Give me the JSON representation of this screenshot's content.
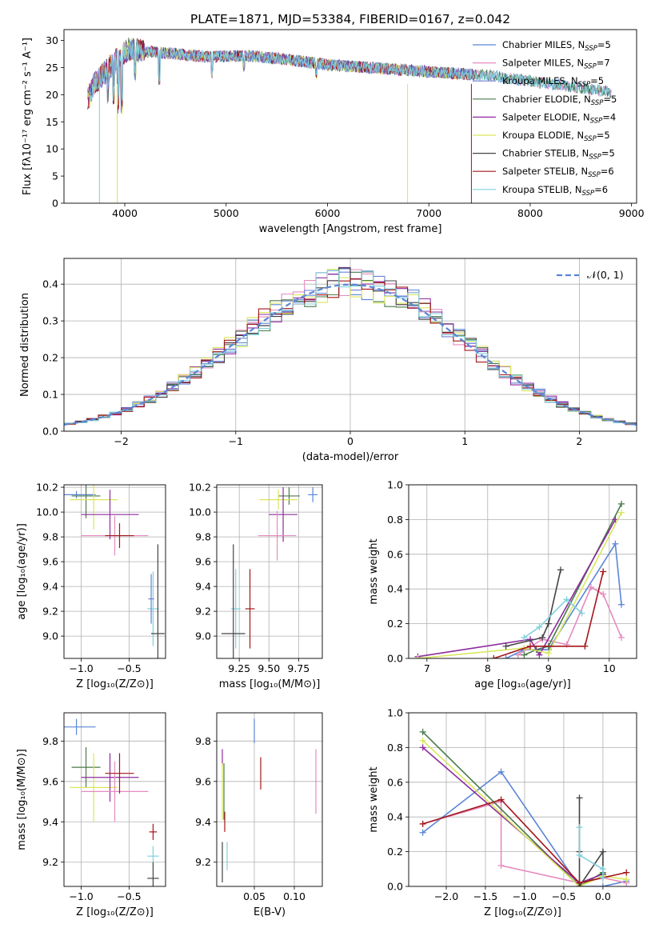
{
  "figure_title": "PLATE=1871, MJD=53384, FIBERID=0167, z=0.042",
  "models": [
    {
      "name": "Chabrier MILES",
      "nssp": "5",
      "color": "#5b86d6"
    },
    {
      "name": "Salpeter MILES",
      "nssp": "7",
      "color": "#e58bbf"
    },
    {
      "name": "Kroupa MILES",
      "nssp": "5",
      "color": "#6f7fd0"
    },
    {
      "name": "Chabrier ELODIE",
      "nssp": "5",
      "color": "#4a7a4a"
    },
    {
      "name": "Salpeter ELODIE",
      "nssp": "4",
      "color": "#8e2c9e"
    },
    {
      "name": "Kroupa ELODIE",
      "nssp": "5",
      "color": "#d9e65c"
    },
    {
      "name": "Chabrier STELIB",
      "nssp": "5",
      "color": "#444444"
    },
    {
      "name": "Salpeter STELIB",
      "nssp": "6",
      "color": "#a3161a"
    },
    {
      "name": "Kroupa STELIB",
      "nssp": "6",
      "color": "#7fd1dd"
    }
  ],
  "chart_data": [
    {
      "id": "spectrum",
      "type": "line",
      "title": "PLATE=1871, MJD=53384, FIBERID=0167, z=0.042",
      "xlabel": "wavelength [Angstrom, rest frame]",
      "ylabel": "Flux [fλ10⁻¹⁷ erg cm⁻² s⁻¹ A⁻¹]",
      "xlim": [
        3400,
        9050
      ],
      "ylim": [
        0,
        32
      ],
      "xticks": [
        4000,
        5000,
        6000,
        7000,
        8000,
        9000
      ],
      "yticks": [
        0,
        5,
        10,
        15,
        20,
        25,
        30
      ],
      "legend": "top-right",
      "grid": false,
      "continuum": {
        "x": [
          3630,
          3700,
          3800,
          3950,
          4050,
          4200,
          4500,
          4800,
          5200,
          5600,
          6000,
          6400,
          6800,
          7200,
          7600,
          8000,
          8400,
          8800
        ],
        "y": [
          19,
          22,
          24,
          27,
          28.5,
          28,
          27.5,
          27,
          27.2,
          26.5,
          25.5,
          25,
          24.5,
          24,
          23.5,
          22.5,
          21.5,
          20.5
        ]
      }
    },
    {
      "id": "residuals",
      "type": "line",
      "xlabel": "(data-model)/error",
      "ylabel": "Normed distribution",
      "xlim": [
        -2.5,
        2.5
      ],
      "ylim": [
        0,
        0.47
      ],
      "xticks": [
        -2,
        -1,
        0,
        1,
        2
      ],
      "yticks": [
        0.0,
        0.1,
        0.2,
        0.3,
        0.4
      ],
      "legend": "top-right",
      "legend_label": "𝒩(0, 1)",
      "grid": true,
      "bin_width": 0.1
    },
    {
      "id": "age-vs-z",
      "type": "scatter",
      "xlabel": "Z [log₁₀(Z/Z⊙)]",
      "ylabel": "age  [log₁₀(age/yr)]",
      "xlim": [
        -1.18,
        -0.12
      ],
      "ylim": [
        8.82,
        10.22
      ],
      "xticks": [
        -1.0,
        -0.5
      ],
      "yticks": [
        9.0,
        9.2,
        9.4,
        9.6,
        9.8,
        10.0,
        10.2
      ],
      "grid": true,
      "points": [
        {
          "m": 0,
          "x": -1.05,
          "xerr": 0.2,
          "y": 10.14,
          "yerr": 0.03
        },
        {
          "m": 3,
          "x": -0.95,
          "xerr": 0.15,
          "y": 10.13,
          "yerr": 0.18
        },
        {
          "m": 5,
          "x": -0.87,
          "xerr": 0.25,
          "y": 10.1,
          "yerr": 0.24
        },
        {
          "m": 4,
          "x": -0.7,
          "xerr": 0.3,
          "y": 9.98,
          "yerr": 0.2
        },
        {
          "m": 1,
          "x": -0.65,
          "xerr": 0.35,
          "y": 9.81,
          "yerr": 0.16
        },
        {
          "m": 7,
          "x": -0.6,
          "xerr": 0.15,
          "y": 9.81,
          "yerr": 0.1
        },
        {
          "m": 8,
          "x": -0.25,
          "xerr": 0.06,
          "y": 9.22,
          "yerr": 0.3
        },
        {
          "m": 6,
          "x": -0.2,
          "xerr": 0.07,
          "y": 9.02,
          "yerr": 0.72
        },
        {
          "m": 2,
          "x": -0.27,
          "xerr": 0.03,
          "y": 9.3,
          "yerr": 0.2
        }
      ]
    },
    {
      "id": "age-vs-mass",
      "type": "scatter",
      "xlabel": "mass [log₁₀(M/M⊙)]",
      "ylabel": "",
      "xlim": [
        9.06,
        9.95
      ],
      "ylim": [
        8.82,
        10.22
      ],
      "xticks": [
        9.25,
        9.5,
        9.75
      ],
      "yticks": [
        9.0,
        9.2,
        9.4,
        9.6,
        9.8,
        10.0,
        10.2
      ],
      "grid": true,
      "points": [
        {
          "m": 0,
          "x": 9.87,
          "xerr": 0.04,
          "y": 10.14,
          "yerr": 0.06
        },
        {
          "m": 3,
          "x": 9.67,
          "xerr": 0.09,
          "y": 10.13,
          "yerr": 0.07
        },
        {
          "m": 5,
          "x": 9.58,
          "xerr": 0.16,
          "y": 10.1,
          "yerr": 0.08
        },
        {
          "m": 4,
          "x": 9.62,
          "xerr": 0.12,
          "y": 9.98,
          "yerr": 0.22
        },
        {
          "m": 1,
          "x": 9.57,
          "xerr": 0.16,
          "y": 9.81,
          "yerr": 0.2
        },
        {
          "m": 7,
          "x": 9.34,
          "xerr": 0.04,
          "y": 9.22,
          "yerr": 0.32
        },
        {
          "m": 8,
          "x": 9.22,
          "xerr": 0.04,
          "y": 9.22,
          "yerr": 0.32
        },
        {
          "m": 6,
          "x": 9.2,
          "xerr": 0.1,
          "y": 9.02,
          "yerr": 0.72
        }
      ]
    },
    {
      "id": "weight-vs-age",
      "type": "line",
      "xlabel": "age  [log₁₀(age/yr)]",
      "ylabel": "mass weight",
      "xlim": [
        6.7,
        10.45
      ],
      "ylim": [
        0,
        1.0
      ],
      "xticks": [
        7,
        8,
        9,
        10
      ],
      "yticks": [
        0.0,
        0.2,
        0.4,
        0.6,
        0.8,
        1.0
      ],
      "grid": true,
      "series": [
        {
          "m": 0,
          "x": [
            8.3,
            8.6,
            9.0,
            10.1,
            10.2
          ],
          "y": [
            0.0,
            0.05,
            0.05,
            0.66,
            0.31
          ]
        },
        {
          "m": 1,
          "x": [
            8.5,
            8.9,
            9.3,
            9.7,
            9.9,
            10.2
          ],
          "y": [
            0.02,
            0.11,
            0.08,
            0.41,
            0.37,
            0.12
          ]
        },
        {
          "m": 3,
          "x": [
            8.6,
            8.8,
            9.0,
            10.2
          ],
          "y": [
            0.02,
            0.05,
            0.07,
            0.89
          ]
        },
        {
          "m": 4,
          "x": [
            6.85,
            8.7,
            8.85,
            10.1
          ],
          "y": [
            0.01,
            0.11,
            0.02,
            0.8
          ]
        },
        {
          "m": 5,
          "x": [
            6.85,
            8.6,
            9.0,
            10.2
          ],
          "y": [
            0.0,
            0.06,
            0.03,
            0.84
          ]
        },
        {
          "m": 6,
          "x": [
            8.3,
            8.9,
            9.0,
            9.2
          ],
          "y": [
            0.07,
            0.12,
            0.2,
            0.51
          ]
        },
        {
          "m": 7,
          "x": [
            8.1,
            8.7,
            9.6,
            9.9
          ],
          "y": [
            0.0,
            0.07,
            0.07,
            0.5
          ]
        },
        {
          "m": 8,
          "x": [
            8.6,
            8.85,
            9.3,
            9.55
          ],
          "y": [
            0.12,
            0.18,
            0.34,
            0.26
          ]
        }
      ]
    },
    {
      "id": "mass-vs-z",
      "type": "scatter",
      "xlabel": "Z [log₁₀(Z/Z⊙)]",
      "ylabel": "mass [log₁₀(M/M⊙)]",
      "xlim": [
        -1.18,
        -0.12
      ],
      "ylim": [
        9.08,
        9.94
      ],
      "xticks": [
        -1.0,
        -0.5
      ],
      "yticks": [
        9.2,
        9.4,
        9.6,
        9.8
      ],
      "grid": true,
      "points": [
        {
          "m": 0,
          "x": -1.05,
          "xerr": 0.2,
          "y": 9.87,
          "yerr": 0.04
        },
        {
          "m": 3,
          "x": -0.95,
          "xerr": 0.15,
          "y": 9.67,
          "yerr": 0.1
        },
        {
          "m": 5,
          "x": -0.87,
          "xerr": 0.25,
          "y": 9.57,
          "yerr": 0.17
        },
        {
          "m": 4,
          "x": -0.7,
          "xerr": 0.3,
          "y": 9.62,
          "yerr": 0.12
        },
        {
          "m": 1,
          "x": -0.65,
          "xerr": 0.35,
          "y": 9.55,
          "yerr": 0.15
        },
        {
          "m": 7,
          "x": -0.6,
          "xerr": 0.15,
          "y": 9.64,
          "yerr": 0.1
        },
        {
          "m": 7,
          "x": -0.25,
          "xerr": 0.04,
          "y": 9.35,
          "yerr": 0.04
        },
        {
          "m": 8,
          "x": -0.25,
          "xerr": 0.06,
          "y": 9.23,
          "yerr": 0.05
        },
        {
          "m": 6,
          "x": -0.25,
          "xerr": 0.06,
          "y": 9.12,
          "yerr": 0.08
        }
      ]
    },
    {
      "id": "mass-vs-ebv",
      "type": "scatter",
      "xlabel": "E(B-V)",
      "ylabel": "",
      "xlim": [
        0.003,
        0.135
      ],
      "ylim": [
        9.08,
        9.94
      ],
      "xticks": [
        0.05,
        0.1
      ],
      "yticks": [
        9.2,
        9.4,
        9.6,
        9.8
      ],
      "grid": true,
      "points": [
        {
          "m": 0,
          "x": 0.05,
          "xerr": 0,
          "y": 9.85,
          "yerr": 0.06
        },
        {
          "m": 7,
          "x": 0.058,
          "xerr": 0,
          "y": 9.64,
          "yerr": 0.08
        },
        {
          "m": 1,
          "x": 0.127,
          "xerr": 0,
          "y": 9.6,
          "yerr": 0.16
        },
        {
          "m": 4,
          "x": 0.01,
          "xerr": 0,
          "y": 9.72,
          "yerr": 0.04
        },
        {
          "m": 5,
          "x": 0.01,
          "xerr": 0,
          "y": 9.55,
          "yerr": 0.14
        },
        {
          "m": 3,
          "x": 0.012,
          "xerr": 0,
          "y": 9.55,
          "yerr": 0.14
        },
        {
          "m": 7,
          "x": 0.013,
          "xerr": 0,
          "y": 9.4,
          "yerr": 0.05
        },
        {
          "m": 6,
          "x": 0.01,
          "xerr": 0,
          "y": 9.2,
          "yerr": 0.1
        },
        {
          "m": 8,
          "x": 0.016,
          "xerr": 0,
          "y": 9.23,
          "yerr": 0.07
        }
      ]
    },
    {
      "id": "weight-vs-z",
      "type": "line",
      "xlabel": "Z [log₁₀(Z/Z⊙)]",
      "ylabel": "mass weight",
      "xlim": [
        -2.48,
        0.43
      ],
      "ylim": [
        0,
        1.0
      ],
      "xticks": [
        -2.0,
        -1.5,
        -1.0,
        -0.5,
        0.0
      ],
      "yticks": [
        0.0,
        0.2,
        0.4,
        0.6,
        0.8,
        1.0
      ],
      "grid": true,
      "series": [
        {
          "m": 0,
          "x": [
            -2.3,
            -1.3,
            -0.3,
            0.0,
            0.3
          ],
          "y": [
            0.31,
            0.66,
            0.0,
            0.0,
            0.03
          ]
        },
        {
          "m": 1,
          "x": [
            -2.3,
            -1.3,
            -1.3,
            -0.3,
            0.0,
            0.3
          ],
          "y": [
            0.36,
            0.49,
            0.12,
            0.02,
            0.05,
            0.02
          ]
        },
        {
          "m": 3,
          "x": [
            -2.3,
            -0.3,
            0.0
          ],
          "y": [
            0.89,
            0.0,
            0.08
          ]
        },
        {
          "m": 4,
          "x": [
            -2.3,
            -0.3,
            0.0
          ],
          "y": [
            0.8,
            0.02,
            0.07
          ]
        },
        {
          "m": 5,
          "x": [
            -2.3,
            -0.3,
            0.0,
            0.3
          ],
          "y": [
            0.84,
            0.0,
            0.06,
            0.04
          ]
        },
        {
          "m": 6,
          "x": [
            -0.3,
            -0.3,
            -0.3,
            0.0,
            0.0
          ],
          "y": [
            0.51,
            0.2,
            0.0,
            0.2,
            0.07
          ]
        },
        {
          "m": 7,
          "x": [
            -2.3,
            -1.3,
            -0.3,
            0.3
          ],
          "y": [
            0.36,
            0.5,
            0.02,
            0.08
          ]
        },
        {
          "m": 8,
          "x": [
            -0.3,
            -0.3,
            0.0,
            0.0
          ],
          "y": [
            0.34,
            0.18,
            0.1,
            0.05
          ]
        }
      ]
    }
  ]
}
